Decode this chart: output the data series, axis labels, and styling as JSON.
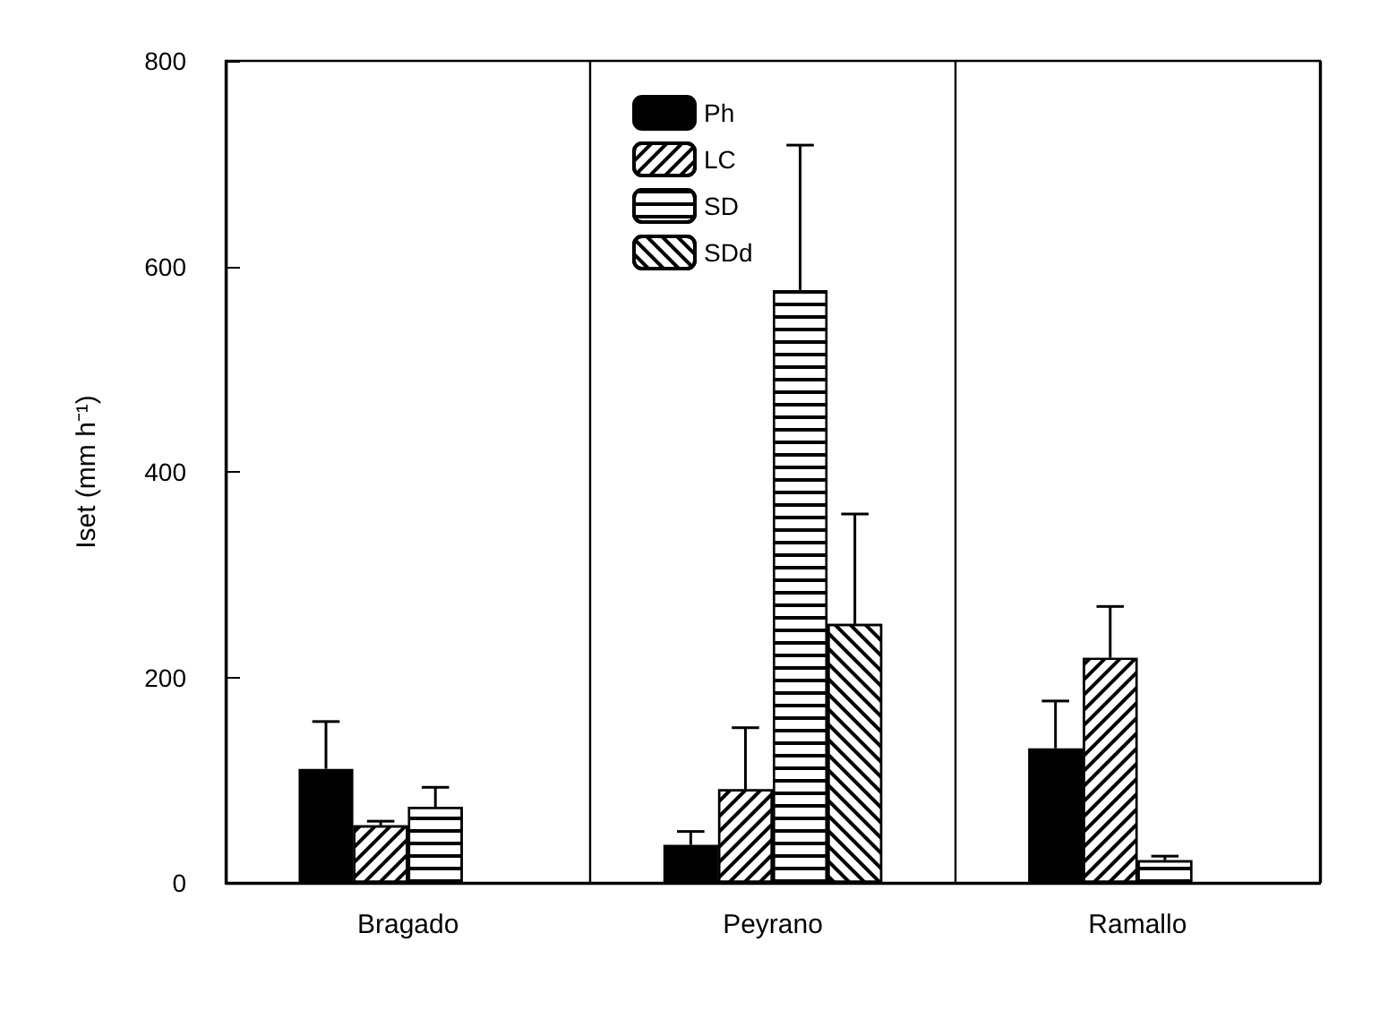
{
  "chart_data": {
    "type": "bar",
    "ylabel": "Iset (mm h⁻¹)",
    "categories": [
      "Bragado",
      "Peyrano",
      "Ramallo"
    ],
    "ylim": [
      0,
      800
    ],
    "yticks": [
      0,
      200,
      400,
      600,
      800
    ],
    "grid": false,
    "legend": "top",
    "series": [
      {
        "name": "Ph",
        "color": "#000000",
        "values": [
          111,
          37,
          131
        ],
        "errors": [
          [
            111,
            157
          ],
          [
            37,
            50
          ],
          [
            131,
            177
          ]
        ]
      },
      {
        "name": "LC",
        "color": "#ffffff",
        "values": [
          56,
          91,
          219
        ],
        "errors": [
          [
            56,
            60
          ],
          [
            91,
            151
          ],
          [
            219,
            269
          ]
        ]
      },
      {
        "name": "SD",
        "color": "#ffffff",
        "values": [
          74,
          577,
          22
        ],
        "errors": [
          [
            74,
            93
          ],
          [
            577,
            718
          ],
          [
            22,
            26
          ]
        ]
      },
      {
        "name": "SDd",
        "color": "#ffffff",
        "values": [
          null,
          252,
          null
        ],
        "errors": [
          null,
          [
            252,
            359
          ],
          null
        ]
      }
    ]
  }
}
